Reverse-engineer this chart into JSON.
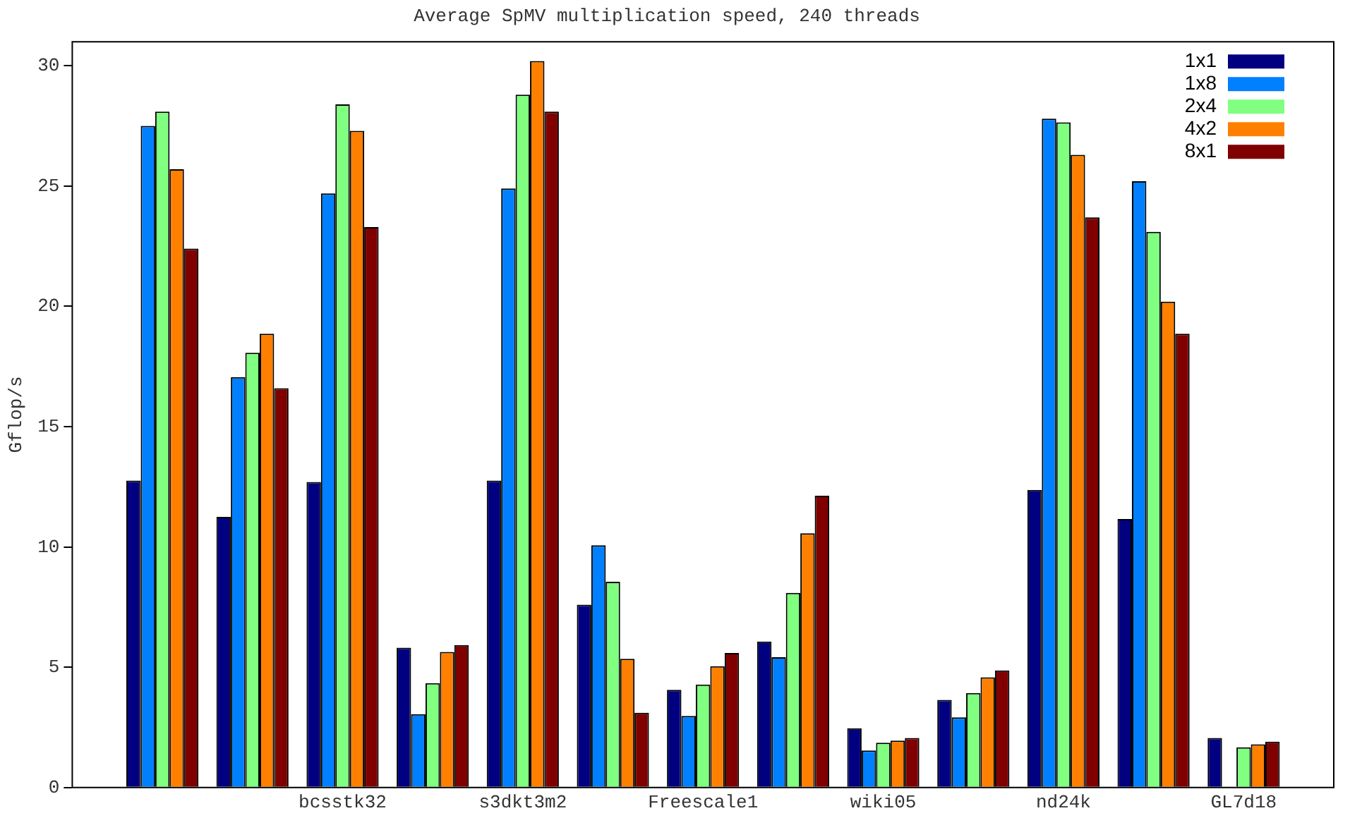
{
  "chart_data": {
    "type": "bar",
    "title": "Average SpMV multiplication speed, 240 threads",
    "ylabel": "Gflop/s",
    "categories": [
      null,
      null,
      "bcsstk32",
      null,
      "s3dkt3m2",
      null,
      "Freescale1",
      null,
      "wiki05",
      null,
      "nd24k",
      null,
      "GL7d18"
    ],
    "series": [
      {
        "name": "1x1",
        "color": "#000080",
        "values": [
          12.76,
          11.25,
          12.7,
          5.81,
          12.76,
          7.6,
          4.06,
          6.07,
          2.46,
          3.64,
          12.37,
          11.16,
          2.06
        ]
      },
      {
        "name": "1x8",
        "color": "#0080ff",
        "values": [
          27.5,
          17.06,
          24.7,
          3.05,
          24.9,
          10.07,
          2.98,
          5.42,
          1.54,
          2.92,
          27.8,
          25.2,
          null
        ]
      },
      {
        "name": "2x4",
        "color": "#80ff80",
        "values": [
          28.1,
          18.07,
          28.4,
          4.34,
          28.8,
          8.55,
          4.28,
          8.09,
          1.86,
          3.93,
          27.65,
          23.1,
          1.67
        ]
      },
      {
        "name": "4x2",
        "color": "#ff8000",
        "values": [
          25.7,
          18.86,
          27.3,
          5.64,
          30.2,
          5.35,
          5.04,
          10.57,
          1.95,
          4.58,
          26.3,
          20.2,
          1.8
        ]
      },
      {
        "name": "8x1",
        "color": "#800000",
        "values": [
          22.4,
          16.6,
          23.3,
          5.92,
          28.1,
          3.11,
          5.59,
          12.13,
          2.06,
          4.87,
          23.7,
          18.86,
          1.91
        ]
      }
    ],
    "ylim": [
      0,
      31
    ],
    "yticks": [
      0,
      5,
      10,
      15,
      20,
      25,
      30
    ],
    "grid": false,
    "legend": "top right"
  }
}
